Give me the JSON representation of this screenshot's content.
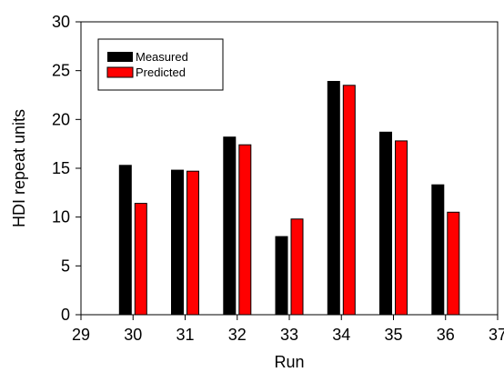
{
  "chart_data": {
    "type": "bar",
    "title": "",
    "xlabel": "Run",
    "ylabel": "HDI repeat units",
    "x": [
      30,
      31,
      32,
      33,
      34,
      35,
      36
    ],
    "xlim": [
      29,
      37
    ],
    "ylim": [
      0,
      30
    ],
    "x_ticks": [
      29,
      30,
      31,
      32,
      33,
      34,
      35,
      36,
      37
    ],
    "y_ticks": [
      0,
      5,
      10,
      15,
      20,
      25,
      30
    ],
    "grid": false,
    "legend_position": "top-left",
    "series": [
      {
        "name": "Measured",
        "color": "#000000",
        "values": [
          15.3,
          14.8,
          18.2,
          8.0,
          23.9,
          18.7,
          13.3
        ]
      },
      {
        "name": "Predicted",
        "color": "#ff0000",
        "values": [
          11.4,
          14.7,
          17.4,
          9.8,
          23.5,
          17.8,
          10.5
        ]
      }
    ]
  }
}
